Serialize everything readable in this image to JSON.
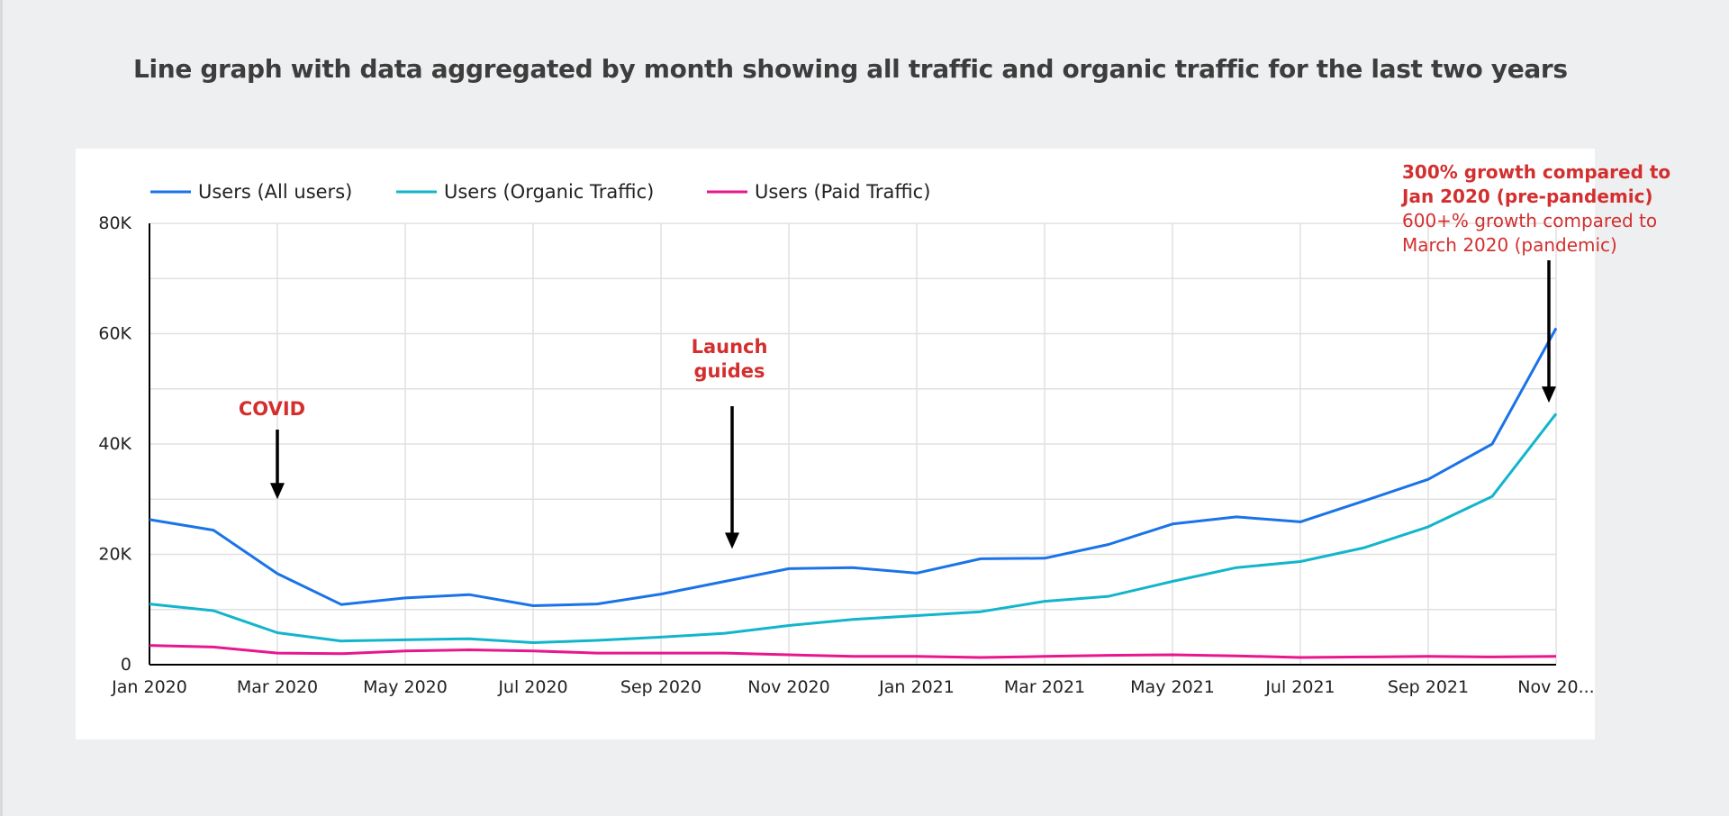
{
  "page": {
    "title": "Line graph with data aggregated by month showing all traffic and organic traffic for the last two years"
  },
  "colors": {
    "background": "#eeeff1",
    "card": "#ffffff",
    "all_users": "#1a73e8",
    "organic": "#12b5cb",
    "paid": "#e8168f",
    "annotation": "#d32f2f",
    "arrow": "#000000",
    "grid": "#e0e0e0"
  },
  "chart_data": {
    "type": "line",
    "title": "",
    "xlabel": "",
    "ylabel": "",
    "ylim": [
      0,
      80000
    ],
    "yticks": [
      0,
      20000,
      40000,
      60000,
      80000
    ],
    "ytick_labels": [
      "0",
      "20K",
      "40K",
      "60K",
      "80K"
    ],
    "x": [
      "Jan 2020",
      "Feb 2020",
      "Mar 2020",
      "Apr 2020",
      "May 2020",
      "Jun 2020",
      "Jul 2020",
      "Aug 2020",
      "Sep 2020",
      "Oct 2020",
      "Nov 2020",
      "Dec 2020",
      "Jan 2021",
      "Feb 2021",
      "Mar 2021",
      "Apr 2021",
      "May 2021",
      "Jun 2021",
      "Jul 2021",
      "Aug 2021",
      "Sep 2021",
      "Oct 2021",
      "Nov 2021"
    ],
    "xtick_labels": [
      "Jan 2020",
      "Mar 2020",
      "May 2020",
      "Jul 2020",
      "Sep 2020",
      "Nov 2020",
      "Jan 2021",
      "Mar 2021",
      "May 2021",
      "Jul 2021",
      "Sep 2021",
      "Nov 20..."
    ],
    "grid": true,
    "legend_position": "top-left",
    "series": [
      {
        "name": "Users (All users)",
        "color": "#1a73e8",
        "values": [
          26300,
          24400,
          16500,
          10900,
          12100,
          12700,
          10700,
          11000,
          12800,
          15100,
          17400,
          17600,
          16600,
          19200,
          19300,
          21800,
          25500,
          26800,
          25900,
          29700,
          33600,
          40000,
          61000
        ]
      },
      {
        "name": "Users (Organic Traffic)",
        "color": "#12b5cb",
        "values": [
          11000,
          9800,
          5800,
          4300,
          4500,
          4700,
          4000,
          4400,
          5000,
          5700,
          7100,
          8200,
          8900,
          9600,
          11500,
          12400,
          15100,
          17600,
          18700,
          21200,
          25000,
          30500,
          45500
        ]
      },
      {
        "name": "Users (Paid Traffic)",
        "color": "#e8168f",
        "values": [
          3500,
          3200,
          2100,
          2000,
          2500,
          2700,
          2500,
          2100,
          2100,
          2100,
          1800,
          1500,
          1500,
          1300,
          1500,
          1700,
          1800,
          1600,
          1300,
          1400,
          1500,
          1400,
          1500
        ]
      }
    ],
    "annotations": [
      {
        "lines": [
          "COVID"
        ],
        "bold_lines": 1,
        "target_index": 2,
        "target_value": 30000
      },
      {
        "lines": [
          "Launch",
          "guides"
        ],
        "bold_lines": 2,
        "target_index": 9,
        "target_value": 21000
      },
      {
        "lines": [
          "300% growth compared to",
          "Jan 2020 (pre-pandemic)",
          "600+% growth compared to",
          "March 2020 (pandemic)"
        ],
        "bold_lines": 2,
        "target_index": 22,
        "target_value": 47500
      }
    ]
  }
}
